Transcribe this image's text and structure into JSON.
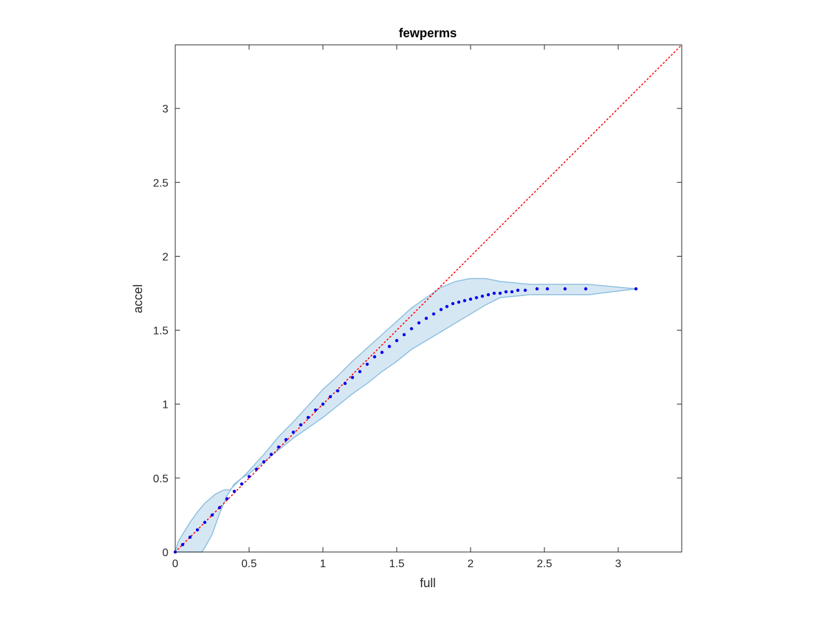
{
  "chart_data": {
    "type": "scatter",
    "title": "fewperms",
    "xlabel": "full",
    "ylabel": "accel",
    "xlim": [
      0,
      3.43
    ],
    "ylim": [
      0,
      3.43
    ],
    "xticks": [
      "0",
      "0.5",
      "1",
      "1.5",
      "2",
      "2.5",
      "3"
    ],
    "yticks": [
      "0",
      "0.5",
      "1",
      "1.5",
      "2",
      "2.5",
      "3"
    ],
    "grid": false,
    "colors": {
      "points": "#0000ee",
      "reference_line": "#ff0000",
      "band_fill": "#d6e7f4",
      "band_edge": "#8dbfdf",
      "axes": "#262626"
    },
    "reference_line": {
      "style": "dotted",
      "x": [
        0,
        3.43
      ],
      "y": [
        0,
        3.43
      ]
    },
    "band": {
      "upper": [
        [
          0,
          0
        ],
        [
          0.02,
          0.07
        ],
        [
          0.05,
          0.12
        ],
        [
          0.1,
          0.2
        ],
        [
          0.15,
          0.27
        ],
        [
          0.2,
          0.33
        ],
        [
          0.27,
          0.39
        ],
        [
          0.33,
          0.42
        ],
        [
          0.37,
          0.42
        ],
        [
          0.45,
          0.5
        ],
        [
          0.5,
          0.55
        ],
        [
          0.6,
          0.66
        ],
        [
          0.7,
          0.78
        ],
        [
          0.8,
          0.88
        ],
        [
          0.9,
          0.99
        ],
        [
          1.0,
          1.1
        ],
        [
          1.1,
          1.19
        ],
        [
          1.2,
          1.29
        ],
        [
          1.3,
          1.38
        ],
        [
          1.4,
          1.47
        ],
        [
          1.5,
          1.56
        ],
        [
          1.6,
          1.65
        ],
        [
          1.7,
          1.72
        ],
        [
          1.8,
          1.79
        ],
        [
          1.9,
          1.83
        ],
        [
          2.0,
          1.85
        ],
        [
          2.1,
          1.85
        ],
        [
          2.2,
          1.83
        ],
        [
          2.3,
          1.82
        ],
        [
          2.4,
          1.81
        ],
        [
          2.6,
          1.81
        ],
        [
          2.8,
          1.81
        ],
        [
          3.12,
          1.78
        ]
      ],
      "lower": [
        [
          3.12,
          1.78
        ],
        [
          2.8,
          1.74
        ],
        [
          2.6,
          1.74
        ],
        [
          2.4,
          1.74
        ],
        [
          2.3,
          1.73
        ],
        [
          2.2,
          1.72
        ],
        [
          2.1,
          1.67
        ],
        [
          2.0,
          1.61
        ],
        [
          1.9,
          1.55
        ],
        [
          1.8,
          1.49
        ],
        [
          1.7,
          1.43
        ],
        [
          1.6,
          1.37
        ],
        [
          1.5,
          1.29
        ],
        [
          1.4,
          1.22
        ],
        [
          1.3,
          1.14
        ],
        [
          1.2,
          1.07
        ],
        [
          1.1,
          0.99
        ],
        [
          1.0,
          0.91
        ],
        [
          0.9,
          0.84
        ],
        [
          0.8,
          0.77
        ],
        [
          0.7,
          0.69
        ],
        [
          0.6,
          0.61
        ],
        [
          0.5,
          0.53
        ],
        [
          0.45,
          0.5
        ],
        [
          0.4,
          0.46
        ],
        [
          0.35,
          0.38
        ],
        [
          0.3,
          0.26
        ],
        [
          0.25,
          0.12
        ],
        [
          0.2,
          0.03
        ],
        [
          0.18,
          0
        ],
        [
          0,
          0
        ]
      ]
    },
    "series": [
      {
        "x": [
          0,
          0.05,
          0.1,
          0.15,
          0.2,
          0.25,
          0.3,
          0.35,
          0.4,
          0.45,
          0.5,
          0.55,
          0.6,
          0.65,
          0.7,
          0.75,
          0.8,
          0.85,
          0.9,
          0.95,
          1.0,
          1.05,
          1.1,
          1.15,
          1.2,
          1.25,
          1.3,
          1.35,
          1.4,
          1.45,
          1.5,
          1.55,
          1.6,
          1.65,
          1.7,
          1.75,
          1.8,
          1.84,
          1.88,
          1.92,
          1.96,
          2.0,
          2.04,
          2.08,
          2.12,
          2.16,
          2.2,
          2.24,
          2.28,
          2.32,
          2.37,
          2.45,
          2.52,
          2.64,
          2.78,
          3.12
        ],
        "y": [
          0,
          0.05,
          0.1,
          0.15,
          0.2,
          0.25,
          0.3,
          0.36,
          0.41,
          0.46,
          0.51,
          0.56,
          0.61,
          0.66,
          0.71,
          0.76,
          0.81,
          0.86,
          0.91,
          0.96,
          1.0,
          1.05,
          1.09,
          1.14,
          1.18,
          1.22,
          1.27,
          1.32,
          1.35,
          1.39,
          1.43,
          1.47,
          1.51,
          1.55,
          1.58,
          1.61,
          1.64,
          1.66,
          1.68,
          1.69,
          1.7,
          1.71,
          1.72,
          1.73,
          1.74,
          1.75,
          1.75,
          1.76,
          1.76,
          1.77,
          1.77,
          1.78,
          1.78,
          1.78,
          1.78,
          1.78
        ]
      }
    ]
  }
}
